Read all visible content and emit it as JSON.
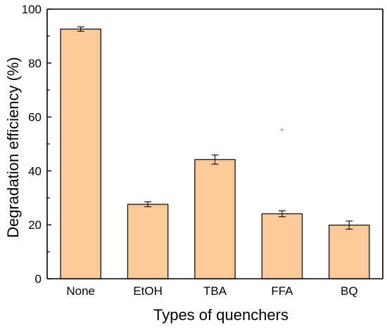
{
  "chart_data": {
    "type": "bar",
    "title": "",
    "xlabel": "Types of quenchers",
    "ylabel": "Degradation efficiency (%)",
    "categories": [
      "None",
      "EtOH",
      "TBA",
      "FFA",
      "BQ"
    ],
    "values": [
      92.6,
      27.6,
      44.2,
      24.1,
      19.9
    ],
    "errors": [
      0.8,
      0.9,
      1.7,
      1.1,
      1.5
    ],
    "ylim": [
      0,
      100
    ],
    "yticks": [
      0,
      20,
      40,
      60,
      80,
      100
    ],
    "grid": false,
    "legend": "none",
    "colors": {
      "bar_fill": "#FCC999",
      "bar_edge": "#000000"
    }
  },
  "stray_marker": {
    "glyph": "*",
    "x": 3.5,
    "y": 55
  }
}
